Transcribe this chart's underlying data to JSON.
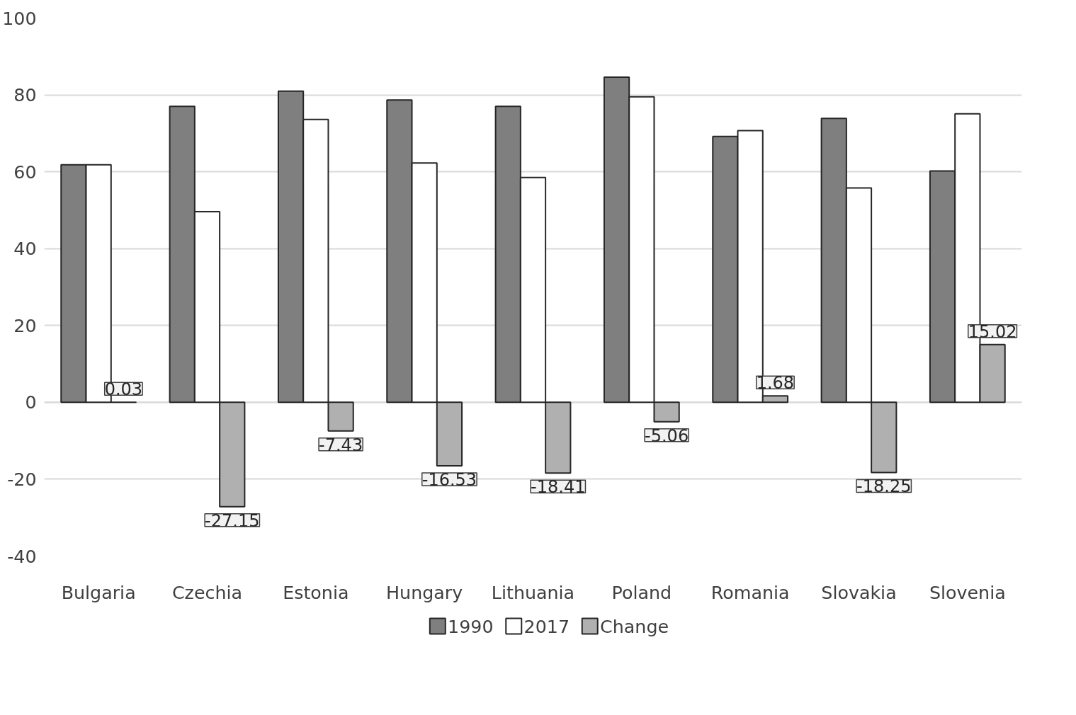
{
  "chart_data": {
    "type": "bar",
    "categories": [
      "Bulgaria",
      "Czechia",
      "Estonia",
      "Hungary",
      "Lithuania",
      "Poland",
      "Romania",
      "Slovakia",
      "Slovenia"
    ],
    "series": [
      {
        "name": "1990",
        "color": "#7f7f7f",
        "values": [
          61.8,
          77.0,
          81.0,
          78.7,
          77.0,
          84.6,
          69.2,
          73.9,
          60.2
        ]
      },
      {
        "name": "2017",
        "color": "#ffffff",
        "values": [
          61.8,
          49.6,
          73.6,
          62.3,
          58.5,
          79.5,
          70.7,
          55.8,
          75.1
        ]
      },
      {
        "name": "Change",
        "color": "#b0b0b0",
        "values": [
          0.03,
          -27.15,
          -7.43,
          -16.53,
          -18.41,
          -5.06,
          1.68,
          -18.25,
          15.02
        ],
        "value_labels": [
          "0.03",
          "-27.15",
          "-7.43",
          "-16.53",
          "-18.41",
          "-5.06",
          "1.68",
          "-18.25",
          "15.02"
        ]
      }
    ],
    "ylim": [
      -40,
      100
    ],
    "yticks": [
      -40,
      -20,
      0,
      20,
      40,
      60,
      80,
      100
    ],
    "grid": "y",
    "legend": "bottom"
  }
}
